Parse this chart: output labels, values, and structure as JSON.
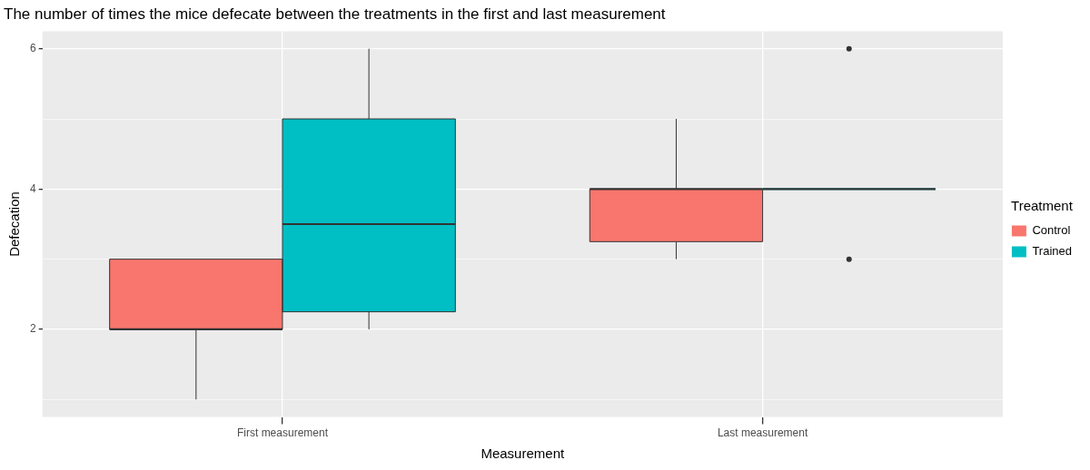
{
  "chart_data": {
    "type": "box",
    "title": "The number of times the mice defecate between the treatments in the first and last measurement",
    "xlabel": "Measurement",
    "ylabel": "Defecation",
    "legend_title": "Treatment",
    "categories": [
      "First measurement",
      "Last measurement"
    ],
    "series": [
      {
        "name": "Control",
        "color": "#f8766d",
        "boxes": [
          {
            "low": 1,
            "q1": 2,
            "median": 2,
            "q3": 3,
            "high": 3
          },
          {
            "low": 3,
            "q1": 3.25,
            "median": 4,
            "q3": 4,
            "high": 5
          }
        ]
      },
      {
        "name": "Trained",
        "color": "#00bfc4",
        "boxes": [
          {
            "low": 2,
            "q1": 2.25,
            "median": 3.5,
            "q3": 5,
            "high": 6
          },
          {
            "low": 4,
            "q1": 4,
            "median": 4,
            "q3": 4,
            "high": 4,
            "outliers": [
              6,
              3
            ]
          }
        ]
      }
    ],
    "ylim": [
      0.75,
      6.25
    ],
    "yticks": [
      {
        "value": 1,
        "label": null
      },
      2,
      {
        "value": 3,
        "label": null
      },
      4,
      {
        "value": 5,
        "label": null
      },
      6
    ],
    "grid": true,
    "legend": "right"
  }
}
